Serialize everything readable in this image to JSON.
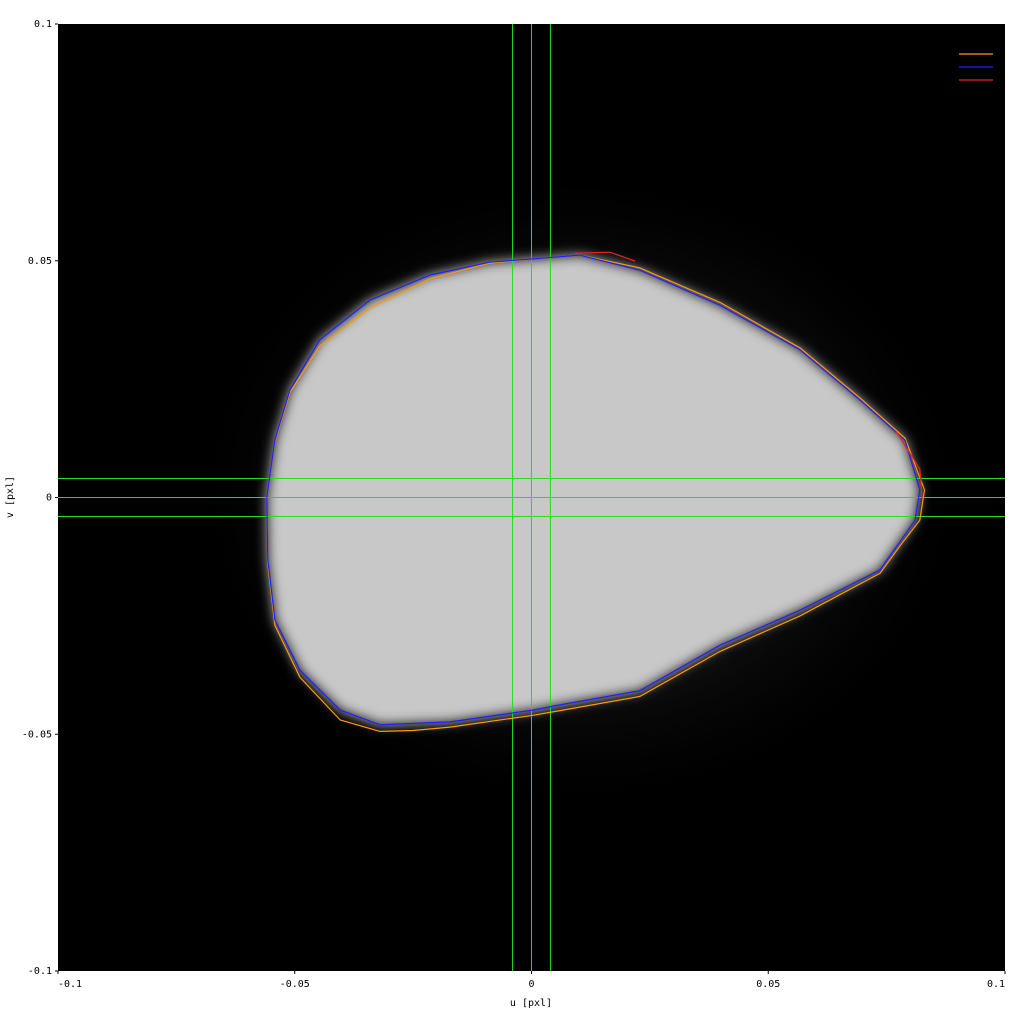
{
  "chart_data": {
    "type": "line",
    "xlabel": "u [pxl]",
    "ylabel": "v [pxl]",
    "xlim": [
      -0.1,
      0.1
    ],
    "ylim": [
      -0.1,
      0.1
    ],
    "xticks": [
      -0.1,
      -0.05,
      0,
      0.05,
      0.1
    ],
    "yticks": [
      -0.1,
      -0.05,
      0,
      0.05,
      0.1
    ],
    "vlines": [
      -0.004,
      0,
      0.004
    ],
    "hlines": [
      0.004,
      0,
      -0.004
    ],
    "guide_color": "#22dd22",
    "legend": "upper right",
    "series": [
      {
        "color": "#ff9900",
        "x": [
          0.0003,
          0.0102,
          0.0229,
          0.0398,
          0.0567,
          0.0694,
          0.0789,
          0.083,
          0.082,
          0.078,
          0.0736,
          0.0567,
          0.0398,
          0.0229,
          0.006,
          0.0003,
          -0.0172,
          -0.025,
          -0.032,
          -0.0404,
          -0.0489,
          -0.0542,
          -0.0557,
          -0.0559,
          -0.0542,
          -0.051,
          -0.0447,
          -0.0341,
          -0.0214,
          -0.0088,
          0.0003
        ],
        "values": [
          0.0504,
          0.0512,
          0.0485,
          0.0412,
          0.0316,
          0.021,
          0.0125,
          0.0016,
          -0.0048,
          -0.01,
          -0.016,
          -0.025,
          -0.0325,
          -0.042,
          -0.045,
          -0.046,
          -0.0485,
          -0.0492,
          -0.0494,
          -0.047,
          -0.038,
          -0.027,
          -0.014,
          0.0001,
          0.0118,
          0.0222,
          0.032,
          0.04,
          0.0462,
          0.0495,
          0.0504
        ]
      },
      {
        "color": "#2020ff",
        "x": [
          0.0003,
          0.0102,
          0.0229,
          0.0398,
          0.0567,
          0.0694,
          0.0789,
          0.082,
          0.081,
          0.0736,
          0.0567,
          0.0398,
          0.0229,
          0.006,
          0.0003,
          -0.0172,
          -0.032,
          -0.0404,
          -0.0489,
          -0.0542,
          -0.0557,
          -0.0559,
          -0.0542,
          -0.051,
          -0.0447,
          -0.0341,
          -0.0214,
          -0.0088,
          0.0003
        ],
        "values": [
          0.0504,
          0.0512,
          0.048,
          0.0406,
          0.0312,
          0.0206,
          0.0121,
          0.0016,
          -0.0048,
          -0.0153,
          -0.0238,
          -0.0312,
          -0.0408,
          -0.0438,
          -0.0449,
          -0.0474,
          -0.048,
          -0.0449,
          -0.0365,
          -0.0259,
          -0.0132,
          0.0001,
          0.0121,
          0.0227,
          0.0333,
          0.0417,
          0.047,
          0.0497,
          0.0504
        ]
      },
      {
        "color": "#ee2020",
        "x": [
          0.0092,
          0.0166,
          0.0219,
          null,
          0.077,
          0.082,
          0.0825
        ],
        "values": [
          0.0516,
          0.0518,
          0.0499,
          null,
          0.014,
          0.006,
          0.0
        ]
      }
    ]
  }
}
